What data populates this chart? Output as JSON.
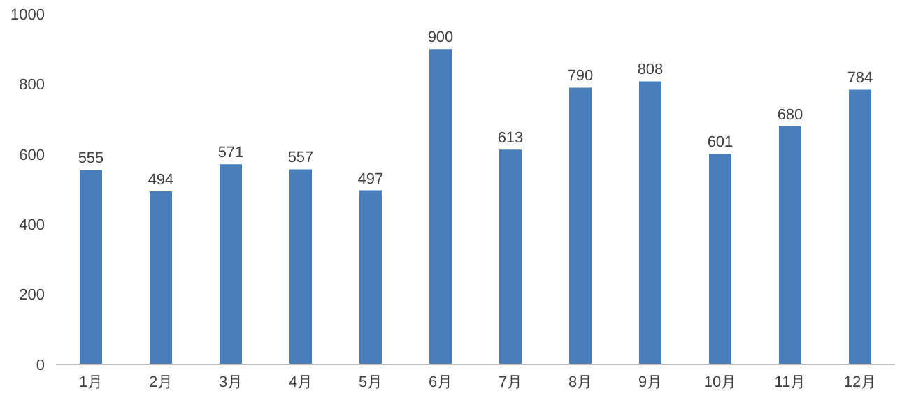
{
  "chart_data": {
    "type": "bar",
    "categories": [
      "1月",
      "2月",
      "3月",
      "4月",
      "5月",
      "6月",
      "7月",
      "8月",
      "9月",
      "10月",
      "11月",
      "12月"
    ],
    "values": [
      555,
      494,
      571,
      557,
      497,
      900,
      613,
      790,
      808,
      601,
      680,
      784
    ],
    "color": "#4a7ebb",
    "ylim": [
      0,
      1000
    ],
    "yticks": [
      0,
      200,
      400,
      600,
      800,
      1000
    ],
    "grid": false,
    "legend": false,
    "data_labels": true
  }
}
